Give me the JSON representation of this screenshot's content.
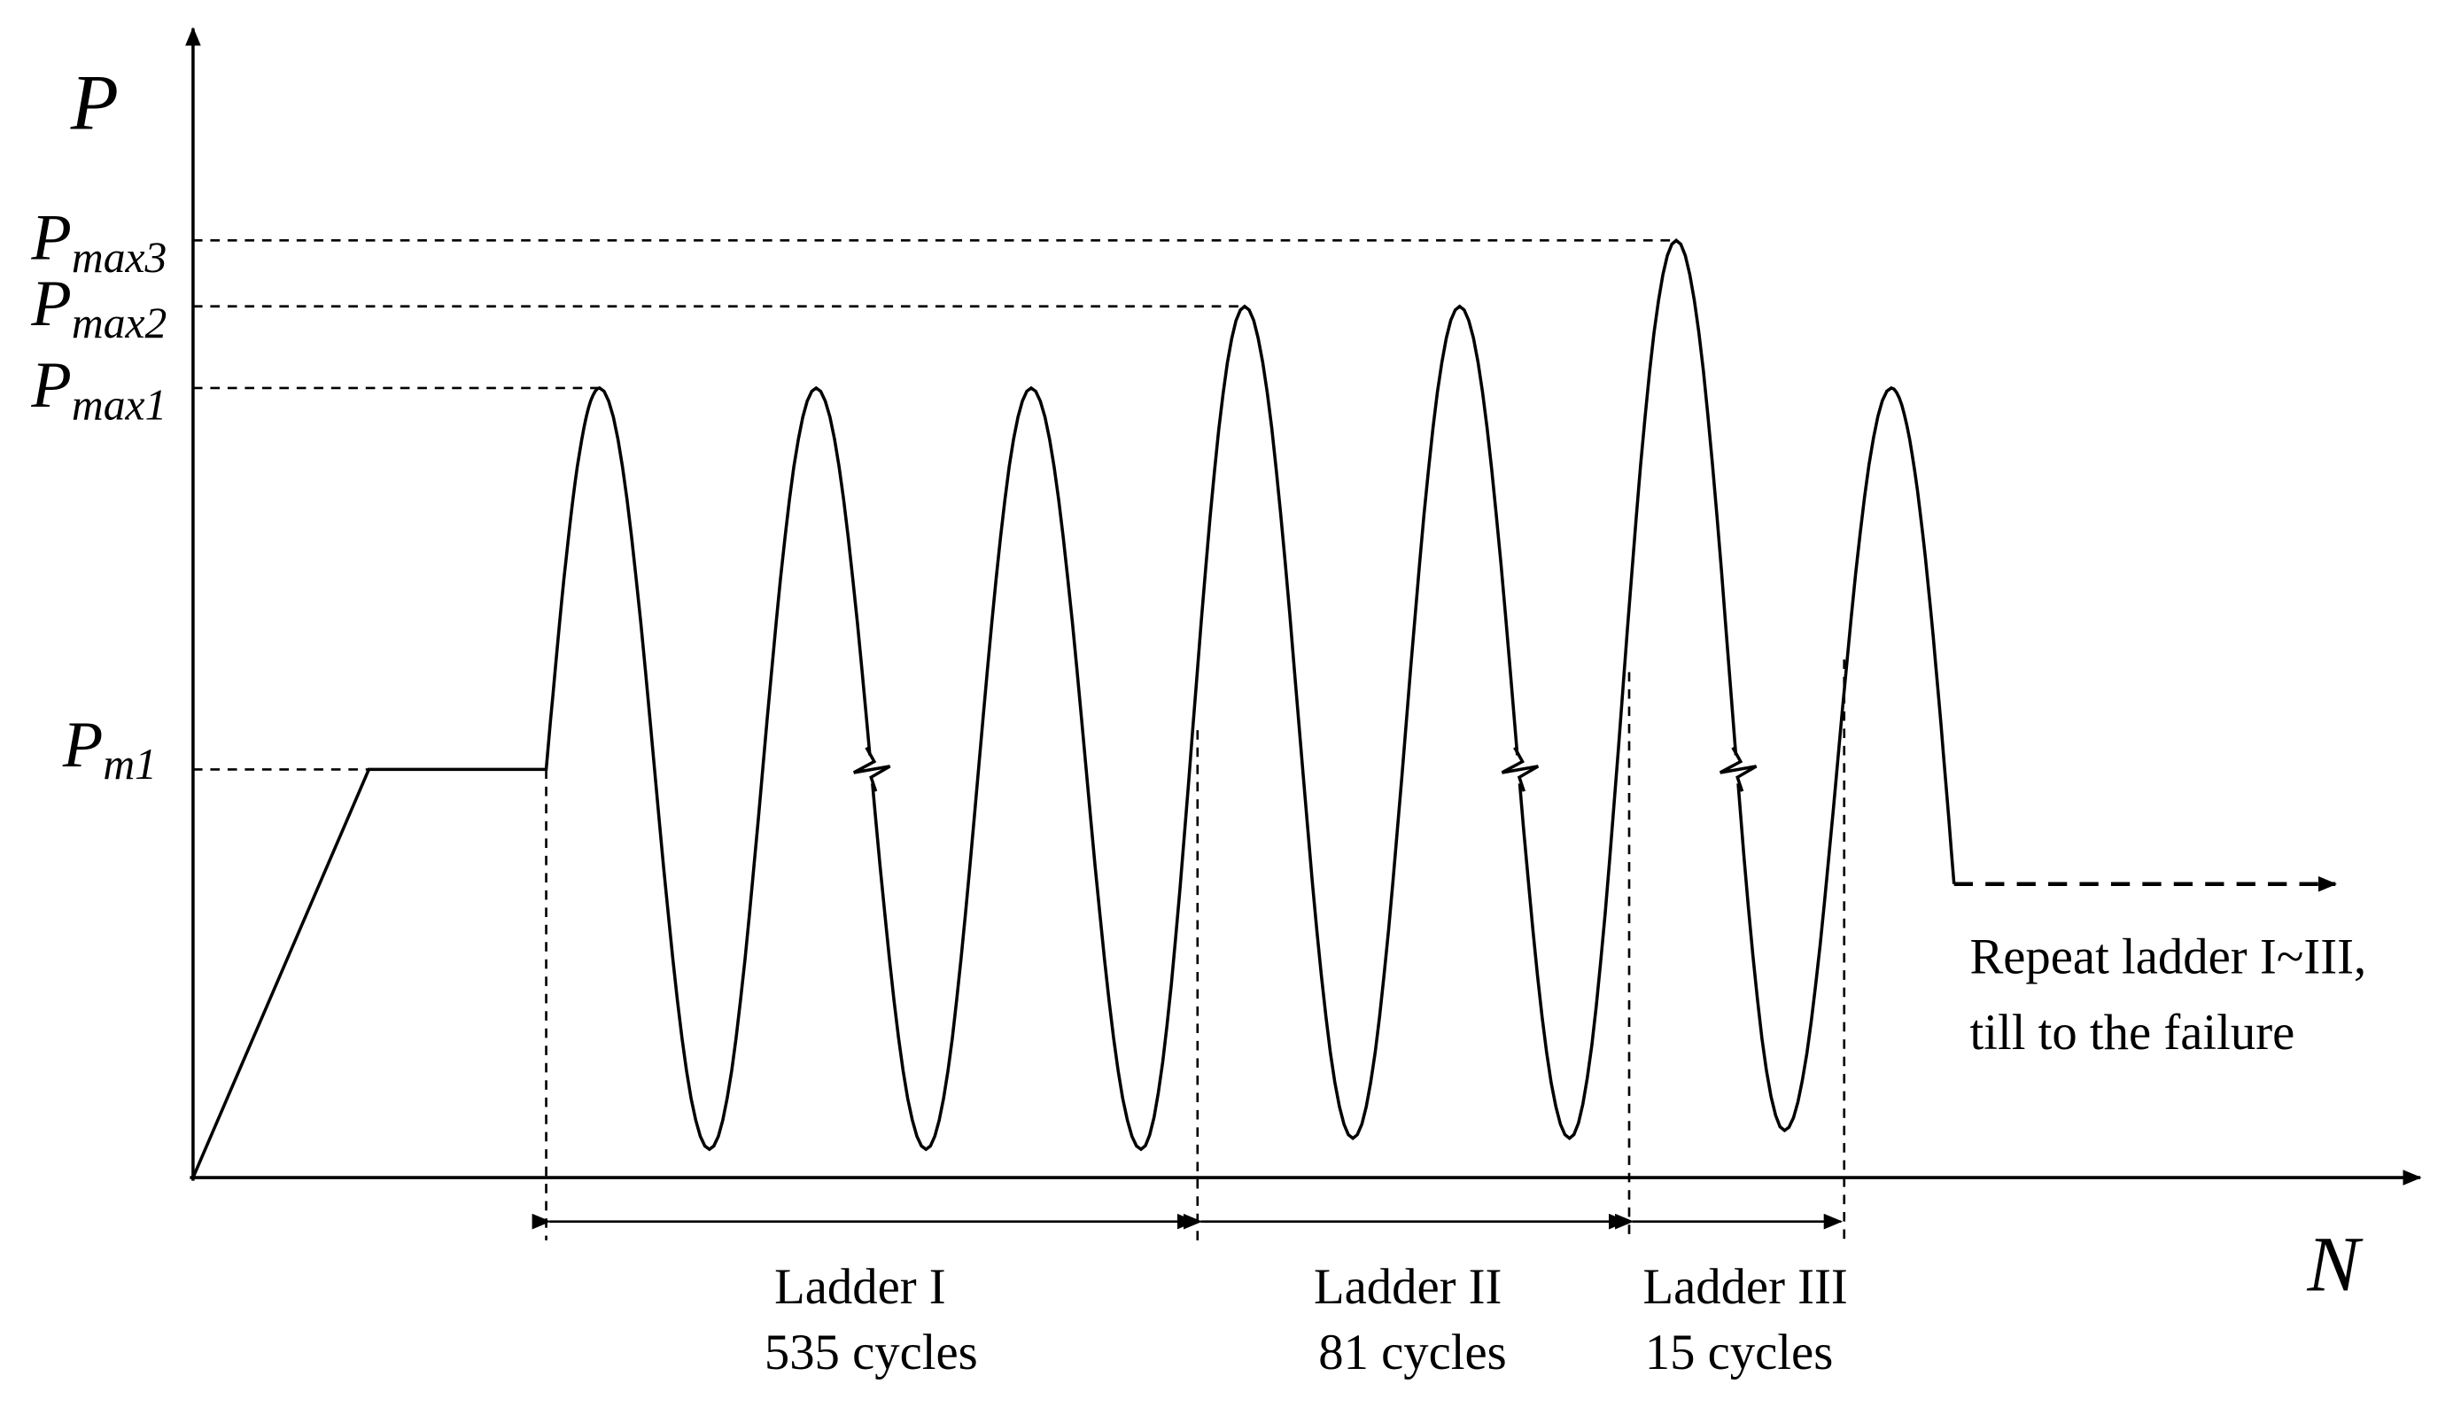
{
  "axes": {
    "y_label": "P",
    "x_label": "N"
  },
  "levels": [
    {
      "main": "P",
      "sub": "max3"
    },
    {
      "main": "P",
      "sub": "max2"
    },
    {
      "main": "P",
      "sub": "max1"
    },
    {
      "main": "P",
      "sub": "m1"
    }
  ],
  "ladders": [
    {
      "name": "Ladder I",
      "cycles": "535 cycles"
    },
    {
      "name": "Ladder II",
      "cycles": "81 cycles"
    },
    {
      "name": "Ladder III",
      "cycles": "15 cycles"
    }
  ],
  "annotation": [
    "Repeat ladder I~III,",
    "till to the failure"
  ]
}
